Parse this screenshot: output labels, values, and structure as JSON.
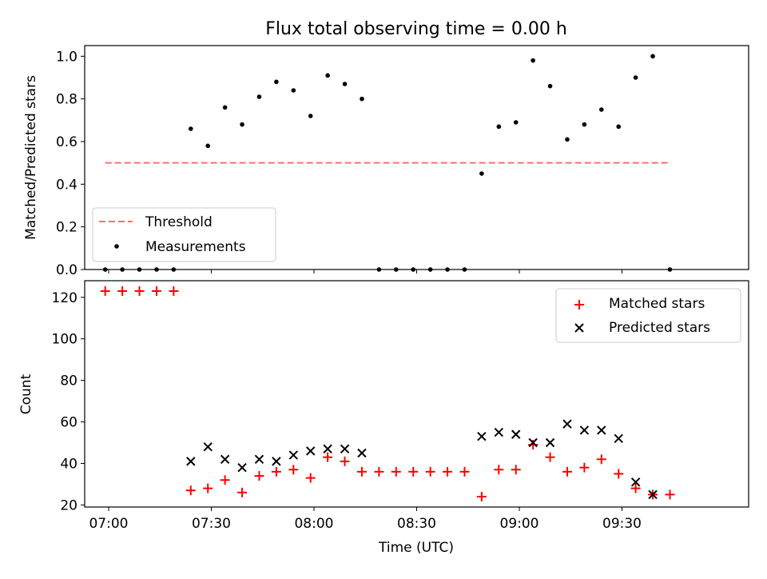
{
  "figure": {
    "title": "Flux total observing time = 0.00 h",
    "xlabel": "Time (UTC)"
  },
  "chart_data": [
    {
      "type": "scatter",
      "ylabel": "Matched/Predicted stars",
      "ylim": [
        0,
        1.05
      ],
      "yticks": [
        "0.0",
        "0.2",
        "0.4",
        "0.6",
        "0.8",
        "1.0"
      ],
      "xlim": [
        "06:53",
        "10:07"
      ],
      "xtick_labels_shown": false,
      "legend_position": "lower-left",
      "threshold": {
        "name": "Threshold",
        "value": 0.5,
        "x_start": "06:59",
        "x_end": "09:44",
        "color": "#f87171"
      },
      "series": [
        {
          "name": "Measurements",
          "color": "#000000",
          "x": [
            "06:59",
            "07:04",
            "07:09",
            "07:14",
            "07:19",
            "07:24",
            "07:29",
            "07:34",
            "07:39",
            "07:44",
            "07:49",
            "07:54",
            "07:59",
            "08:04",
            "08:09",
            "08:14",
            "08:19",
            "08:24",
            "08:29",
            "08:34",
            "08:39",
            "08:44",
            "08:49",
            "08:54",
            "08:59",
            "09:04",
            "09:09",
            "09:14",
            "09:19",
            "09:24",
            "09:29",
            "09:34",
            "09:39",
            "09:44"
          ],
          "y": [
            0,
            0,
            0,
            0,
            0,
            0.66,
            0.58,
            0.76,
            0.68,
            0.81,
            0.88,
            0.84,
            0.72,
            0.91,
            0.87,
            0.8,
            0,
            0,
            0,
            0,
            0,
            0,
            0.45,
            0.67,
            0.69,
            0.98,
            0.86,
            0.61,
            0.68,
            0.75,
            0.67,
            0.9,
            1.0,
            0
          ]
        }
      ]
    },
    {
      "type": "scatter",
      "ylabel": "Count",
      "ylim": [
        19,
        128
      ],
      "yticks": [
        "20",
        "40",
        "60",
        "80",
        "100",
        "120"
      ],
      "xlim": [
        "06:53",
        "10:07"
      ],
      "xticks": [
        "07:00",
        "07:30",
        "08:00",
        "08:30",
        "09:00",
        "09:30"
      ],
      "legend_position": "upper-right",
      "series": [
        {
          "name": "Matched stars",
          "marker": "+",
          "color": "#ff0000",
          "x": [
            "06:59",
            "07:04",
            "07:09",
            "07:14",
            "07:19",
            "07:24",
            "07:29",
            "07:34",
            "07:39",
            "07:44",
            "07:49",
            "07:54",
            "07:59",
            "08:04",
            "08:09",
            "08:14",
            "08:19",
            "08:24",
            "08:29",
            "08:34",
            "08:39",
            "08:44",
            "08:49",
            "08:54",
            "08:59",
            "09:04",
            "09:09",
            "09:14",
            "09:19",
            "09:24",
            "09:29",
            "09:34",
            "09:39",
            "09:44"
          ],
          "y": [
            123,
            123,
            123,
            123,
            123,
            27,
            28,
            32,
            26,
            34,
            36,
            37,
            33,
            43,
            41,
            36,
            36,
            36,
            36,
            36,
            36,
            36,
            24,
            37,
            37,
            49,
            43,
            36,
            38,
            42,
            35,
            28,
            25,
            25
          ]
        },
        {
          "name": "Predicted stars",
          "marker": "x",
          "color": "#000000",
          "x": [
            "07:24",
            "07:29",
            "07:34",
            "07:39",
            "07:44",
            "07:49",
            "07:54",
            "07:59",
            "08:04",
            "08:09",
            "08:14",
            "08:49",
            "08:54",
            "08:59",
            "09:04",
            "09:09",
            "09:14",
            "09:19",
            "09:24",
            "09:29",
            "09:34",
            "09:39"
          ],
          "y": [
            41,
            48,
            42,
            38,
            42,
            41,
            44,
            46,
            47,
            47,
            45,
            53,
            55,
            54,
            50,
            50,
            59,
            56,
            56,
            52,
            31,
            25
          ]
        }
      ]
    }
  ]
}
